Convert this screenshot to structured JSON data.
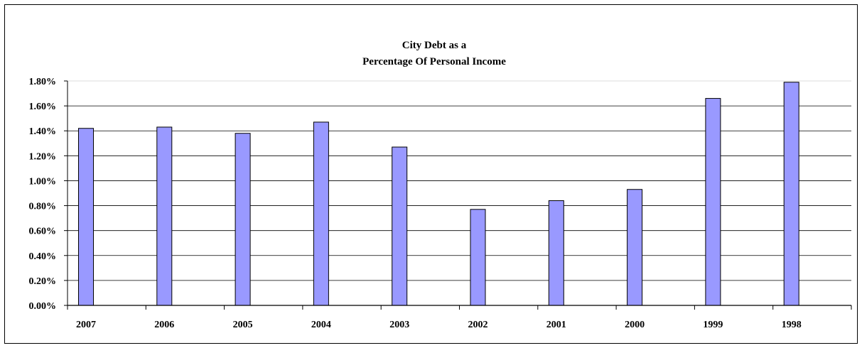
{
  "chart_data": {
    "type": "bar",
    "title_lines": [
      "City Debt as a",
      "Percentage Of Personal Income"
    ],
    "categories": [
      "2007",
      "2006",
      "2005",
      "2004",
      "2003",
      "2002",
      "2001",
      "2000",
      "1999",
      "1998"
    ],
    "values": [
      1.42,
      1.43,
      1.38,
      1.47,
      1.27,
      0.77,
      0.84,
      0.93,
      1.66,
      1.79
    ],
    "value_unit": "%",
    "ylim": [
      0,
      1.8
    ],
    "y_ticks": [
      "0.00%",
      "0.20%",
      "0.40%",
      "0.60%",
      "0.80%",
      "1.00%",
      "1.20%",
      "1.40%",
      "1.60%",
      "1.80%"
    ],
    "xlabel": "",
    "ylabel": "",
    "grid": true,
    "legend": "none",
    "colors": {
      "bar_fill": "#9999ff",
      "bar_stroke": "#000000",
      "grid": "#000000"
    }
  }
}
